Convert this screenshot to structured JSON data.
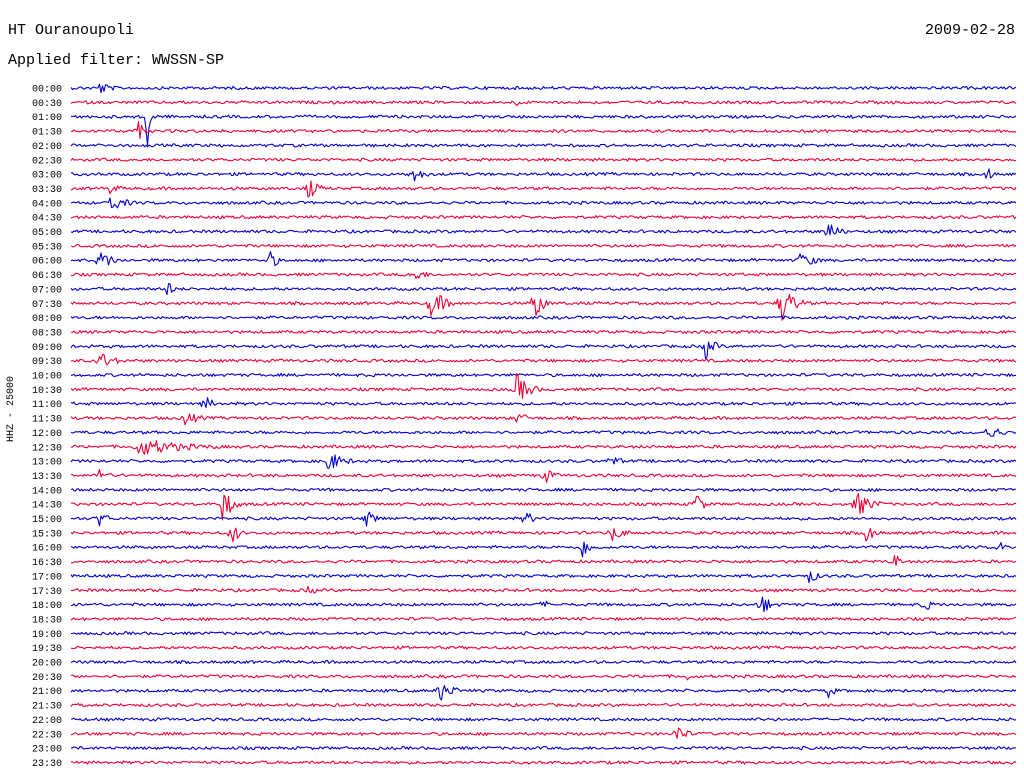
{
  "header": {
    "station": "HT Ouranoupoli",
    "filter_label": "Applied filter: WWSSN-SP",
    "date": "2009-02-28"
  },
  "side_label": "HHZ - 25000",
  "colors": {
    "trace_a": "#0000cc",
    "trace_b": "#ee0033",
    "background": "#ffffff"
  },
  "chart_data": {
    "type": "line",
    "title": "HT Ouranoupoli",
    "subtitle": "Applied filter: WWSSN-SP",
    "ylabel": "HHZ - 25000",
    "time_labels": [
      "00:00",
      "00:30",
      "01:00",
      "01:30",
      "02:00",
      "02:30",
      "03:00",
      "03:30",
      "04:00",
      "04:30",
      "05:00",
      "05:30",
      "06:00",
      "06:30",
      "07:00",
      "07:30",
      "08:00",
      "08:30",
      "09:00",
      "09:30",
      "10:00",
      "10:30",
      "11:00",
      "11:30",
      "12:00",
      "12:30",
      "13:00",
      "13:30",
      "14:00",
      "14:30",
      "15:00",
      "15:30",
      "16:00",
      "16:30",
      "17:00",
      "17:30",
      "18:00",
      "18:30",
      "19:00",
      "19:30",
      "20:00",
      "20:30",
      "21:00",
      "21:30",
      "22:00",
      "22:30",
      "23:00",
      "23:30"
    ],
    "events": [
      {
        "row": 0,
        "pos": 0.03,
        "amp": 7,
        "dur": 0.04
      },
      {
        "row": 1,
        "pos": 0.47,
        "amp": 5,
        "dur": 0.02
      },
      {
        "row": 2,
        "pos": 0.08,
        "amp": 55,
        "dur": 0.01
      },
      {
        "row": 3,
        "pos": 0.07,
        "amp": 12,
        "dur": 0.02
      },
      {
        "row": 6,
        "pos": 0.36,
        "amp": 9,
        "dur": 0.04
      },
      {
        "row": 6,
        "pos": 0.97,
        "amp": 14,
        "dur": 0.01
      },
      {
        "row": 7,
        "pos": 0.04,
        "amp": 6,
        "dur": 0.04
      },
      {
        "row": 7,
        "pos": 0.25,
        "amp": 14,
        "dur": 0.03
      },
      {
        "row": 8,
        "pos": 0.04,
        "amp": 10,
        "dur": 0.05
      },
      {
        "row": 10,
        "pos": 0.8,
        "amp": 14,
        "dur": 0.03
      },
      {
        "row": 12,
        "pos": 0.03,
        "amp": 12,
        "dur": 0.04
      },
      {
        "row": 12,
        "pos": 0.21,
        "amp": 14,
        "dur": 0.02
      },
      {
        "row": 12,
        "pos": 0.77,
        "amp": 9,
        "dur": 0.05
      },
      {
        "row": 13,
        "pos": 0.36,
        "amp": 9,
        "dur": 0.04
      },
      {
        "row": 14,
        "pos": 0.1,
        "amp": 12,
        "dur": 0.02
      },
      {
        "row": 15,
        "pos": 0.38,
        "amp": 18,
        "dur": 0.04
      },
      {
        "row": 15,
        "pos": 0.49,
        "amp": 26,
        "dur": 0.02
      },
      {
        "row": 15,
        "pos": 0.75,
        "amp": 22,
        "dur": 0.04
      },
      {
        "row": 18,
        "pos": 0.67,
        "amp": 14,
        "dur": 0.03
      },
      {
        "row": 19,
        "pos": 0.03,
        "amp": 10,
        "dur": 0.05
      },
      {
        "row": 21,
        "pos": 0.47,
        "amp": 18,
        "dur": 0.04
      },
      {
        "row": 22,
        "pos": 0.14,
        "amp": 10,
        "dur": 0.03
      },
      {
        "row": 23,
        "pos": 0.12,
        "amp": 8,
        "dur": 0.05
      },
      {
        "row": 23,
        "pos": 0.47,
        "amp": 6,
        "dur": 0.05
      },
      {
        "row": 24,
        "pos": 0.97,
        "amp": 12,
        "dur": 0.03
      },
      {
        "row": 25,
        "pos": 0.07,
        "amp": 10,
        "dur": 0.15
      },
      {
        "row": 26,
        "pos": 0.27,
        "amp": 12,
        "dur": 0.05
      },
      {
        "row": 26,
        "pos": 0.57,
        "amp": 9,
        "dur": 0.03
      },
      {
        "row": 27,
        "pos": 0.03,
        "amp": 12,
        "dur": 0.02
      },
      {
        "row": 27,
        "pos": 0.5,
        "amp": 10,
        "dur": 0.03
      },
      {
        "row": 29,
        "pos": 0.16,
        "amp": 20,
        "dur": 0.03
      },
      {
        "row": 29,
        "pos": 0.66,
        "amp": 18,
        "dur": 0.02
      },
      {
        "row": 29,
        "pos": 0.83,
        "amp": 14,
        "dur": 0.05
      },
      {
        "row": 30,
        "pos": 0.03,
        "amp": 8,
        "dur": 0.03
      },
      {
        "row": 30,
        "pos": 0.31,
        "amp": 10,
        "dur": 0.04
      },
      {
        "row": 30,
        "pos": 0.48,
        "amp": 12,
        "dur": 0.02
      },
      {
        "row": 31,
        "pos": 0.17,
        "amp": 14,
        "dur": 0.02
      },
      {
        "row": 31,
        "pos": 0.57,
        "amp": 10,
        "dur": 0.04
      },
      {
        "row": 31,
        "pos": 0.84,
        "amp": 10,
        "dur": 0.03
      },
      {
        "row": 32,
        "pos": 0.54,
        "amp": 12,
        "dur": 0.03
      },
      {
        "row": 32,
        "pos": 0.98,
        "amp": 8,
        "dur": 0.02
      },
      {
        "row": 33,
        "pos": 0.87,
        "amp": 10,
        "dur": 0.02
      },
      {
        "row": 34,
        "pos": 0.78,
        "amp": 8,
        "dur": 0.03
      },
      {
        "row": 35,
        "pos": 0.25,
        "amp": 6,
        "dur": 0.03
      },
      {
        "row": 36,
        "pos": 0.5,
        "amp": 9,
        "dur": 0.01
      },
      {
        "row": 36,
        "pos": 0.73,
        "amp": 12,
        "dur": 0.03
      },
      {
        "row": 36,
        "pos": 0.9,
        "amp": 9,
        "dur": 0.03
      },
      {
        "row": 41,
        "pos": 0.65,
        "amp": 7,
        "dur": 0.01
      },
      {
        "row": 42,
        "pos": 0.39,
        "amp": 12,
        "dur": 0.04
      },
      {
        "row": 42,
        "pos": 0.8,
        "amp": 10,
        "dur": 0.02
      },
      {
        "row": 45,
        "pos": 0.64,
        "amp": 12,
        "dur": 0.03
      }
    ]
  }
}
